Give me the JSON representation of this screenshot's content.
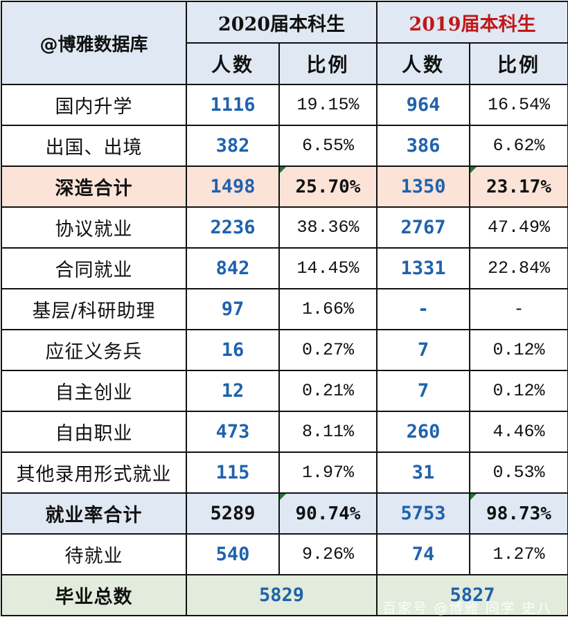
{
  "table": {
    "corner_label": "@博雅数据库",
    "groups": [
      {
        "label": "2020届本科生",
        "color": "#111111"
      },
      {
        "label": "2019届本科生",
        "color": "#c01818"
      }
    ],
    "subheaders": [
      "人数",
      "比例",
      "人数",
      "比例"
    ],
    "rows": [
      {
        "label": "国内升学",
        "n2020": "1116",
        "p2020": "19.15%",
        "n2019": "964",
        "p2019": "16.54%"
      },
      {
        "label": "出国、出境",
        "n2020": "382",
        "p2020": "6.55%",
        "n2019": "386",
        "p2019": "6.62%"
      },
      {
        "label": "深造合计",
        "n2020": "1498",
        "p2020": "25.70%",
        "n2019": "1350",
        "p2019": "23.17%"
      },
      {
        "label": "协议就业",
        "n2020": "2236",
        "p2020": "38.36%",
        "n2019": "2767",
        "p2019": "47.49%"
      },
      {
        "label": "合同就业",
        "n2020": "842",
        "p2020": "14.45%",
        "n2019": "1331",
        "p2019": "22.84%"
      },
      {
        "label": "基层/科研助理",
        "n2020": "97",
        "p2020": "1.66%",
        "n2019": "-",
        "p2019": "-"
      },
      {
        "label": "应征义务兵",
        "n2020": "16",
        "p2020": "0.27%",
        "n2019": "7",
        "p2019": "0.12%"
      },
      {
        "label": "自主创业",
        "n2020": "12",
        "p2020": "0.21%",
        "n2019": "7",
        "p2019": "0.12%"
      },
      {
        "label": "自由职业",
        "n2020": "473",
        "p2020": "8.11%",
        "n2019": "260",
        "p2019": "4.46%"
      },
      {
        "label": "其他录用形式就业",
        "n2020": "115",
        "p2020": "1.97%",
        "n2019": "31",
        "p2019": "0.53%"
      },
      {
        "label": "就业率合计",
        "n2020": "5289",
        "p2020": "90.74%",
        "n2019": "5753",
        "p2019": "98.73%"
      },
      {
        "label": "待就业",
        "n2020": "540",
        "p2020": "9.26%",
        "n2019": "74",
        "p2019": "1.27%"
      }
    ],
    "total": {
      "label": "毕业总数",
      "t2020": "5829",
      "t2019": "5827"
    }
  },
  "colors": {
    "header_bg": "#dfe8f3",
    "subtotal_bg": "#fbe3d8",
    "employment_total_bg": "#dfe8f3",
    "grand_total_bg": "#e3ecdc",
    "count_text": "#1f62ad",
    "year_2019_text": "#c01818"
  },
  "watermark": "百家号 @博雅 同学 史八"
}
